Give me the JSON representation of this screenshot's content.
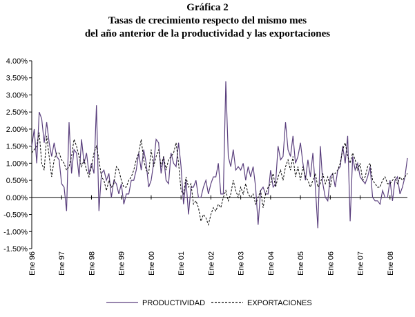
{
  "chart_data": {
    "type": "line",
    "title": "Gráfica 2",
    "subtitle_lines": [
      "Tasas de crecimiento respecto del mismo mes",
      "del año anterior de la productividad y las exportaciones"
    ],
    "xlabel": "",
    "ylabel": "",
    "ylim": [
      -1.5,
      4.0
    ],
    "y_tick_labels": [
      "4.00%",
      "3.50%",
      "3.00%",
      "2.50%",
      "2.00%",
      "1.50%",
      "1.00%",
      "0.50%",
      "0.00%",
      "-0.50%",
      "-1.00%",
      "-1.50%"
    ],
    "y_ticks": [
      4.0,
      3.5,
      3.0,
      2.5,
      2.0,
      1.5,
      1.0,
      0.5,
      0.0,
      -0.5,
      -1.0,
      -1.5
    ],
    "x_tick_labels": [
      "Ene 96",
      "Ene 97",
      "Ene 98",
      "Ene 99",
      "Ene 00",
      "Ene 01",
      "Ene 02",
      "Ene 03",
      "Ene 04",
      "Ene 05",
      "Ene 06",
      "Ene 07",
      "Ene 08"
    ],
    "grid": false,
    "legend_position": "bottom",
    "series": [
      {
        "name": "PRODUCTIVIDAD",
        "color": "#5a3f7d",
        "style": "solid",
        "values": [
          1.5,
          2.0,
          1.0,
          2.5,
          2.3,
          1.6,
          2.2,
          1.6,
          1.2,
          1.6,
          1.2,
          1.1,
          0.4,
          0.3,
          -0.4,
          2.2,
          0.7,
          1.4,
          1.3,
          0.6,
          1.7,
          1.0,
          1.3,
          0.7,
          1.0,
          0.7,
          2.7,
          -0.4,
          0.7,
          0.8,
          0.5,
          0.7,
          0.0,
          0.5,
          0.4,
          0.1,
          0.4,
          -0.2,
          0.1,
          0.1,
          0.5,
          0.5,
          0.8,
          1.3,
          0.8,
          1.4,
          1.0,
          0.3,
          0.5,
          1.0,
          1.7,
          1.6,
          0.7,
          1.2,
          0.5,
          0.4,
          1.3,
          1.0,
          0.9,
          1.6,
          0.9,
          -0.2,
          0.5,
          -0.5,
          0.3,
          0.3,
          0.5,
          0.0,
          0.0,
          0.3,
          0.5,
          0.1,
          0.4,
          0.6,
          0.6,
          1.0,
          0.1,
          0.1,
          3.4,
          1.2,
          0.9,
          1.4,
          0.8,
          0.9,
          0.8,
          1.0,
          0.5,
          0.9,
          0.6,
          0.9,
          0.3,
          -0.8,
          0.2,
          0.3,
          0.1,
          0.1,
          0.8,
          0.3,
          0.4,
          1.5,
          1.1,
          1.2,
          2.2,
          1.4,
          1.2,
          1.8,
          1.0,
          1.2,
          1.6,
          1.0,
          0.5,
          1.1,
          0.6,
          1.3,
          0.3,
          -0.9,
          1.5,
          0.4,
          0.0,
          -0.1,
          0.6,
          0.7,
          0.3,
          0.8,
          0.9,
          1.5,
          1.0,
          1.8,
          -0.7,
          1.2,
          0.8,
          1.0,
          0.6,
          0.5,
          0.4,
          0.6,
          0.9,
          0.0,
          -0.1,
          -0.1,
          -0.2,
          0.2,
          0.0,
          0.0,
          0.5,
          -0.1,
          0.5,
          0.6,
          0.1,
          0.3,
          0.6,
          1.15
        ]
      },
      {
        "name": "EXPORTACIONES",
        "color": "#000000",
        "style": "dashed",
        "values": [
          1.3,
          1.4,
          1.5,
          1.9,
          1.0,
          0.8,
          1.8,
          1.2,
          0.6,
          1.1,
          1.3,
          1.3,
          1.1,
          1.0,
          0.8,
          0.9,
          1.2,
          1.7,
          1.5,
          1.2,
          0.9,
          1.1,
          0.8,
          0.6,
          0.9,
          1.3,
          1.5,
          1.1,
          0.6,
          0.5,
          0.2,
          0.5,
          0.3,
          0.4,
          0.9,
          0.8,
          0.5,
          0.3,
          0.3,
          0.5,
          0.6,
          0.8,
          1.1,
          1.3,
          1.7,
          1.1,
          0.8,
          0.7,
          1.4,
          0.9,
          1.2,
          1.4,
          0.9,
          1.2,
          0.8,
          1.1,
          1.2,
          1.3,
          1.6,
          1.0,
          0.2,
          0.1,
          0.6,
          0.3,
          0.4,
          -0.2,
          -0.1,
          -0.3,
          -0.7,
          -0.5,
          -0.6,
          -0.8,
          -0.5,
          -0.3,
          -0.4,
          -0.2,
          -0.3,
          0.0,
          0.2,
          -0.1,
          0.1,
          0.5,
          0.2,
          0.0,
          0.3,
          0.1,
          0.4,
          0.1,
          0.0,
          0.1,
          -0.2,
          0.0,
          0.2,
          -0.3,
          0.1,
          0.3,
          0.4,
          0.7,
          0.3,
          0.6,
          0.8,
          0.5,
          0.9,
          1.1,
          0.8,
          1.2,
          0.6,
          0.9,
          0.5,
          0.9,
          0.6,
          0.5,
          0.3,
          0.5,
          0.7,
          0.3,
          0.4,
          0.7,
          0.4,
          0.6,
          0.3,
          0.7,
          0.7,
          0.8,
          1.0,
          1.4,
          1.6,
          1.2,
          1.0,
          1.3,
          1.1,
          0.8,
          1.0,
          0.5,
          0.6,
          0.9,
          1.0,
          0.5,
          0.4,
          0.3,
          0.3,
          0.5,
          0.6,
          0.4,
          0.4,
          0.5,
          0.6,
          0.4,
          0.6,
          0.5,
          0.6,
          0.7
        ]
      }
    ]
  }
}
